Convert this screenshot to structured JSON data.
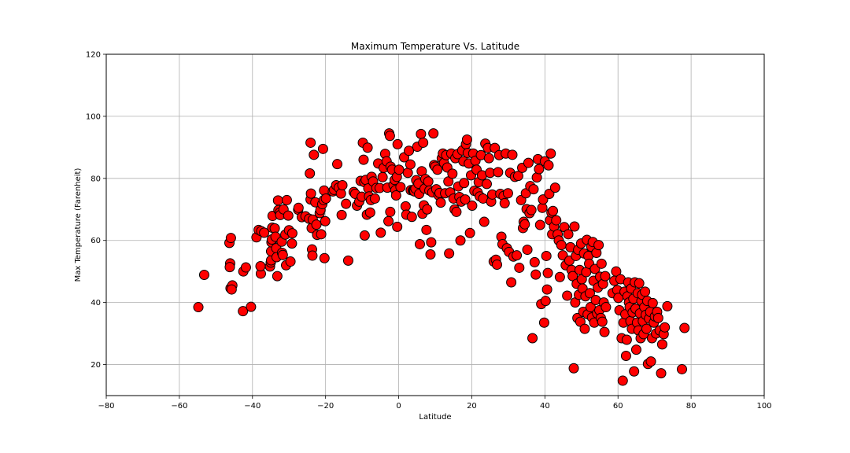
{
  "chart_data": {
    "type": "scatter",
    "title": "Maximum Temperature Vs. Latitude",
    "xlabel": "Latitude",
    "ylabel": "Max Temperature (Farenheit)",
    "xlim": [
      -80,
      100
    ],
    "ylim": [
      10,
      120
    ],
    "xticks": [
      -80,
      -60,
      -40,
      -20,
      0,
      20,
      40,
      60,
      80,
      100
    ],
    "yticks": [
      20,
      40,
      60,
      80,
      100,
      120
    ],
    "grid": true,
    "legend": "none",
    "marker_fill": "#ff0000",
    "marker_edge": "#000000",
    "points": [
      [
        -54.8,
        38.5
      ],
      [
        -53.2,
        48.9
      ],
      [
        -46.3,
        59.2
      ],
      [
        -45.9,
        60.8
      ],
      [
        -46.1,
        52.6
      ],
      [
        -46.2,
        51.4
      ],
      [
        -46.0,
        44.6
      ],
      [
        -45.5,
        45.5
      ],
      [
        -45.7,
        44.2
      ],
      [
        -42.6,
        37.2
      ],
      [
        -42.5,
        50.0
      ],
      [
        -41.8,
        51.3
      ],
      [
        -40.4,
        38.6
      ],
      [
        -38.9,
        61.0
      ],
      [
        -38.3,
        63.4
      ],
      [
        -37.7,
        49.3
      ],
      [
        -37.8,
        51.7
      ],
      [
        -37.6,
        63.0
      ],
      [
        -36.8,
        62.5
      ],
      [
        -35.2,
        51.6
      ],
      [
        -35.0,
        52.9
      ],
      [
        -34.9,
        53.6
      ],
      [
        -34.9,
        56.5
      ],
      [
        -34.8,
        59.4
      ],
      [
        -34.7,
        60.3
      ],
      [
        -34.6,
        64.1
      ],
      [
        -34.5,
        67.9
      ],
      [
        -33.9,
        63.9
      ],
      [
        -33.7,
        61.2
      ],
      [
        -33.5,
        57.5
      ],
      [
        -33.4,
        54.6
      ],
      [
        -33.2,
        48.5
      ],
      [
        -33.0,
        72.9
      ],
      [
        -32.9,
        69.8
      ],
      [
        -32.5,
        69.0
      ],
      [
        -32.4,
        68.2
      ],
      [
        -32.0,
        59.6
      ],
      [
        -31.9,
        56.0
      ],
      [
        -31.7,
        55.3
      ],
      [
        -31.5,
        70.0
      ],
      [
        -31.0,
        61.9
      ],
      [
        -30.8,
        52.0
      ],
      [
        -30.6,
        73.0
      ],
      [
        -30.2,
        68.0
      ],
      [
        -30.0,
        63.3
      ],
      [
        -29.6,
        53.2
      ],
      [
        -29.2,
        59.0
      ],
      [
        -29.1,
        62.3
      ],
      [
        -27.5,
        69.9
      ],
      [
        -27.4,
        70.5
      ],
      [
        -26.5,
        67.5
      ],
      [
        -25.5,
        67.8
      ],
      [
        -24.5,
        67.0
      ],
      [
        -24.3,
        81.6
      ],
      [
        -24.1,
        91.5
      ],
      [
        -24.1,
        73.2
      ],
      [
        -24.0,
        75.1
      ],
      [
        -23.8,
        64.0
      ],
      [
        -23.7,
        57.1
      ],
      [
        -23.6,
        55.1
      ],
      [
        -23.5,
        66.7
      ],
      [
        -23.2,
        87.6
      ],
      [
        -22.8,
        72.3
      ],
      [
        -22.5,
        65.1
      ],
      [
        -22.3,
        61.8
      ],
      [
        -21.6,
        68.8
      ],
      [
        -21.4,
        69.8
      ],
      [
        -21.2,
        62.0
      ],
      [
        -20.9,
        71.7
      ],
      [
        -20.7,
        89.5
      ],
      [
        -20.5,
        73.0
      ],
      [
        -20.4,
        76.1
      ],
      [
        -20.3,
        54.3
      ],
      [
        -20.1,
        66.2
      ],
      [
        -19.9,
        73.5
      ],
      [
        -18.0,
        75.8
      ],
      [
        -17.7,
        76.3
      ],
      [
        -17.1,
        77.8
      ],
      [
        -16.8,
        84.6
      ],
      [
        -16.4,
        77.0
      ],
      [
        -15.8,
        75.1
      ],
      [
        -15.6,
        68.2
      ],
      [
        -15.4,
        77.8
      ],
      [
        -14.4,
        71.8
      ],
      [
        -13.8,
        53.5
      ],
      [
        -12.3,
        75.6
      ],
      [
        -11.9,
        75.0
      ],
      [
        -11.4,
        71.2
      ],
      [
        -10.8,
        72.5
      ],
      [
        -10.4,
        79.2
      ],
      [
        -10.1,
        74.1
      ],
      [
        -9.8,
        91.5
      ],
      [
        -9.6,
        86.0
      ],
      [
        -9.4,
        78.8
      ],
      [
        -9.3,
        61.6
      ],
      [
        -9.0,
        79.5
      ],
      [
        -8.7,
        68.3
      ],
      [
        -8.5,
        89.9
      ],
      [
        -8.3,
        76.8
      ],
      [
        -8.1,
        74.2
      ],
      [
        -7.8,
        69.0
      ],
      [
        -7.6,
        73.0
      ],
      [
        -7.4,
        80.5
      ],
      [
        -7.0,
        79.0
      ],
      [
        -6.5,
        73.5
      ],
      [
        -6.1,
        76.9
      ],
      [
        -5.6,
        84.8
      ],
      [
        -5.2,
        76.9
      ],
      [
        -4.9,
        62.5
      ],
      [
        -4.4,
        80.4
      ],
      [
        -4.1,
        83.4
      ],
      [
        -3.7,
        87.9
      ],
      [
        -3.3,
        85.5
      ],
      [
        -3.1,
        77.0
      ],
      [
        -2.8,
        66.2
      ],
      [
        -2.6,
        94.5
      ],
      [
        -2.4,
        93.7
      ],
      [
        -2.3,
        69.2
      ],
      [
        -2.2,
        83.8
      ],
      [
        -1.8,
        82.8
      ],
      [
        -1.4,
        77.9
      ],
      [
        -1.1,
        79.5
      ],
      [
        -0.9,
        76.2
      ],
      [
        -0.7,
        74.5
      ],
      [
        -0.5,
        80.5
      ],
      [
        -0.4,
        64.4
      ],
      [
        -0.3,
        91.0
      ],
      [
        0.1,
        82.8
      ],
      [
        0.5,
        77.2
      ],
      [
        1.5,
        86.8
      ],
      [
        1.9,
        71.0
      ],
      [
        2.1,
        68.3
      ],
      [
        2.5,
        81.8
      ],
      [
        2.8,
        88.9
      ],
      [
        3.2,
        84.5
      ],
      [
        3.3,
        76.2
      ],
      [
        3.6,
        67.6
      ],
      [
        3.9,
        76.1
      ],
      [
        4.1,
        76.0
      ],
      [
        4.3,
        75.8
      ],
      [
        4.6,
        76.7
      ],
      [
        4.8,
        79.4
      ],
      [
        5.1,
        90.2
      ],
      [
        5.4,
        78.3
      ],
      [
        5.6,
        75.0
      ],
      [
        5.8,
        58.8
      ],
      [
        6.1,
        94.3
      ],
      [
        6.3,
        82.3
      ],
      [
        6.5,
        68.6
      ],
      [
        6.7,
        91.5
      ],
      [
        6.9,
        71.3
      ],
      [
        7.1,
        76.7
      ],
      [
        7.3,
        79.8
      ],
      [
        7.6,
        63.4
      ],
      [
        7.8,
        70.0
      ],
      [
        8.1,
        79.0
      ],
      [
        8.4,
        76.1
      ],
      [
        8.7,
        55.5
      ],
      [
        8.9,
        59.4
      ],
      [
        9.2,
        75.5
      ],
      [
        9.5,
        94.5
      ],
      [
        9.7,
        84.3
      ],
      [
        10.0,
        83.8
      ],
      [
        10.3,
        76.5
      ],
      [
        10.6,
        82.8
      ],
      [
        10.9,
        74.6
      ],
      [
        11.2,
        75.3
      ],
      [
        11.5,
        72.2
      ],
      [
        11.8,
        86.5
      ],
      [
        12.1,
        88.0
      ],
      [
        12.4,
        85.0
      ],
      [
        12.7,
        75.2
      ],
      [
        13.0,
        87.5
      ],
      [
        13.3,
        83.5
      ],
      [
        13.6,
        79.0
      ],
      [
        13.8,
        55.8
      ],
      [
        14.1,
        75.5
      ],
      [
        14.4,
        88.0
      ],
      [
        14.7,
        81.5
      ],
      [
        15.0,
        73.5
      ],
      [
        15.3,
        70.0
      ],
      [
        15.5,
        86.5
      ],
      [
        15.8,
        69.2
      ],
      [
        16.1,
        87.8
      ],
      [
        16.3,
        77.4
      ],
      [
        16.6,
        74.0
      ],
      [
        16.9,
        60.0
      ],
      [
        17.1,
        72.5
      ],
      [
        17.4,
        89.0
      ],
      [
        17.7,
        85.5
      ],
      [
        17.9,
        78.5
      ],
      [
        18.2,
        73.2
      ],
      [
        18.4,
        91.0
      ],
      [
        18.7,
        92.5
      ],
      [
        18.9,
        88.2
      ],
      [
        19.2,
        84.8
      ],
      [
        19.5,
        62.4
      ],
      [
        19.8,
        81.0
      ],
      [
        20.1,
        71.2
      ],
      [
        20.4,
        88.0
      ],
      [
        20.7,
        76.0
      ],
      [
        21.0,
        85.7
      ],
      [
        21.3,
        82.8
      ],
      [
        21.6,
        75.5
      ],
      [
        21.9,
        78.8
      ],
      [
        22.2,
        74.2
      ],
      [
        22.5,
        87.5
      ],
      [
        22.8,
        81.0
      ],
      [
        23.1,
        73.5
      ],
      [
        23.4,
        66.0
      ],
      [
        23.7,
        91.2
      ],
      [
        24.1,
        78.2
      ],
      [
        24.4,
        89.8
      ],
      [
        24.7,
        86.5
      ],
      [
        25.0,
        81.8
      ],
      [
        25.3,
        72.5
      ],
      [
        25.6,
        74.8
      ],
      [
        26.0,
        53.2
      ],
      [
        26.3,
        89.8
      ],
      [
        26.6,
        53.8
      ],
      [
        26.9,
        52.2
      ],
      [
        27.2,
        82.0
      ],
      [
        27.5,
        87.5
      ],
      [
        27.8,
        75.0
      ],
      [
        28.1,
        61.2
      ],
      [
        28.4,
        58.8
      ],
      [
        28.7,
        74.3
      ],
      [
        29.0,
        72.0
      ],
      [
        29.3,
        88.0
      ],
      [
        29.6,
        57.5
      ],
      [
        29.9,
        75.2
      ],
      [
        30.2,
        56.3
      ],
      [
        30.5,
        81.8
      ],
      [
        30.8,
        46.5
      ],
      [
        31.1,
        87.6
      ],
      [
        31.4,
        54.8
      ],
      [
        31.8,
        80.5
      ],
      [
        32.3,
        55.2
      ],
      [
        32.7,
        80.8
      ],
      [
        33.0,
        51.2
      ],
      [
        33.5,
        73.0
      ],
      [
        33.8,
        83.4
      ],
      [
        34.0,
        64.0
      ],
      [
        34.2,
        66.0
      ],
      [
        34.5,
        65.2
      ],
      [
        34.8,
        75.2
      ],
      [
        35.0,
        70.1
      ],
      [
        35.2,
        57.0
      ],
      [
        35.5,
        85.0
      ],
      [
        35.8,
        68.8
      ],
      [
        36.0,
        77.5
      ],
      [
        36.3,
        69.8
      ],
      [
        36.6,
        28.5
      ],
      [
        36.9,
        76.5
      ],
      [
        37.2,
        53.0
      ],
      [
        37.5,
        49.0
      ],
      [
        37.8,
        80.3
      ],
      [
        38.1,
        86.2
      ],
      [
        38.4,
        83.0
      ],
      [
        38.7,
        65.0
      ],
      [
        39.0,
        39.5
      ],
      [
        39.3,
        70.5
      ],
      [
        39.5,
        73.2
      ],
      [
        39.8,
        33.5
      ],
      [
        40.0,
        85.5
      ],
      [
        40.2,
        40.5
      ],
      [
        40.4,
        55.0
      ],
      [
        40.6,
        44.2
      ],
      [
        40.8,
        49.5
      ],
      [
        41.0,
        84.2
      ],
      [
        41.2,
        75.0
      ],
      [
        41.4,
        66.5
      ],
      [
        41.6,
        88.0
      ],
      [
        41.8,
        69.0
      ],
      [
        42.0,
        62.0
      ],
      [
        42.2,
        69.5
      ],
      [
        42.5,
        64.5
      ],
      [
        42.8,
        77.0
      ],
      [
        43.1,
        66.5
      ],
      [
        43.5,
        62.0
      ],
      [
        43.8,
        60.0
      ],
      [
        44.1,
        48.2
      ],
      [
        44.5,
        58.5
      ],
      [
        44.9,
        55.2
      ],
      [
        45.3,
        64.3
      ],
      [
        45.7,
        52.0
      ],
      [
        46.1,
        42.2
      ],
      [
        46.4,
        62.0
      ],
      [
        46.7,
        53.5
      ],
      [
        47.0,
        57.8
      ],
      [
        47.3,
        50.5
      ],
      [
        47.6,
        48.5
      ],
      [
        47.9,
        18.8
      ],
      [
        48.1,
        64.5
      ],
      [
        48.3,
        40.0
      ],
      [
        48.5,
        55.0
      ],
      [
        48.7,
        46.0
      ],
      [
        48.9,
        35.0
      ],
      [
        49.1,
        57.0
      ],
      [
        49.3,
        42.5
      ],
      [
        49.5,
        50.5
      ],
      [
        49.7,
        33.8
      ],
      [
        49.9,
        59.0
      ],
      [
        50.1,
        47.5
      ],
      [
        50.3,
        44.5
      ],
      [
        50.5,
        37.0
      ],
      [
        50.7,
        55.8
      ],
      [
        50.9,
        31.5
      ],
      [
        51.1,
        42.0
      ],
      [
        51.3,
        49.8
      ],
      [
        51.5,
        60.2
      ],
      [
        51.7,
        36.2
      ],
      [
        51.9,
        55.0
      ],
      [
        52.1,
        52.5
      ],
      [
        52.3,
        43.0
      ],
      [
        52.5,
        38.5
      ],
      [
        52.7,
        58.0
      ],
      [
        52.9,
        35.2
      ],
      [
        53.1,
        59.5
      ],
      [
        53.3,
        47.0
      ],
      [
        53.5,
        33.5
      ],
      [
        53.7,
        50.8
      ],
      [
        53.9,
        40.8
      ],
      [
        54.1,
        56.0
      ],
      [
        54.3,
        36.5
      ],
      [
        54.5,
        44.8
      ],
      [
        54.7,
        58.5
      ],
      [
        54.9,
        37.5
      ],
      [
        55.1,
        48.3
      ],
      [
        55.3,
        35.0
      ],
      [
        55.5,
        52.5
      ],
      [
        55.7,
        33.8
      ],
      [
        55.9,
        46.0
      ],
      [
        56.1,
        40.0
      ],
      [
        56.3,
        30.5
      ],
      [
        56.5,
        48.5
      ],
      [
        56.7,
        38.5
      ],
      [
        58.5,
        43.0
      ],
      [
        59.0,
        47.0
      ],
      [
        59.5,
        50.0
      ],
      [
        59.8,
        44.0
      ],
      [
        60.1,
        41.5
      ],
      [
        60.4,
        37.5
      ],
      [
        60.7,
        47.5
      ],
      [
        61.0,
        28.5
      ],
      [
        61.3,
        14.8
      ],
      [
        61.5,
        33.5
      ],
      [
        61.8,
        43.5
      ],
      [
        62.0,
        36.2
      ],
      [
        62.2,
        22.8
      ],
      [
        62.4,
        28.0
      ],
      [
        62.6,
        42.0
      ],
      [
        62.8,
        46.5
      ],
      [
        63.0,
        40.0
      ],
      [
        63.2,
        38.5
      ],
      [
        63.4,
        34.0
      ],
      [
        63.6,
        44.5
      ],
      [
        63.8,
        31.5
      ],
      [
        64.0,
        36.8
      ],
      [
        64.2,
        41.2
      ],
      [
        64.4,
        17.8
      ],
      [
        64.6,
        46.5
      ],
      [
        64.8,
        38.0
      ],
      [
        65.0,
        24.8
      ],
      [
        65.2,
        33.5
      ],
      [
        65.4,
        43.0
      ],
      [
        65.6,
        31.0
      ],
      [
        65.8,
        46.2
      ],
      [
        66.0,
        36.5
      ],
      [
        66.2,
        28.5
      ],
      [
        66.4,
        40.5
      ],
      [
        66.6,
        42.5
      ],
      [
        66.8,
        34.0
      ],
      [
        67.0,
        29.8
      ],
      [
        67.2,
        38.5
      ],
      [
        67.4,
        43.5
      ],
      [
        67.6,
        36.0
      ],
      [
        67.8,
        31.5
      ],
      [
        68.0,
        40.5
      ],
      [
        68.2,
        20.2
      ],
      [
        68.5,
        34.8
      ],
      [
        68.8,
        37.0
      ],
      [
        69.0,
        21.0
      ],
      [
        69.3,
        28.5
      ],
      [
        69.5,
        39.8
      ],
      [
        69.8,
        33.5
      ],
      [
        70.1,
        35.5
      ],
      [
        70.4,
        30.0
      ],
      [
        70.7,
        37.0
      ],
      [
        71.0,
        35.0
      ],
      [
        71.4,
        31.0
      ],
      [
        71.8,
        17.2
      ],
      [
        72.1,
        26.5
      ],
      [
        72.5,
        29.8
      ],
      [
        72.8,
        32.0
      ],
      [
        73.5,
        38.8
      ],
      [
        77.5,
        18.5
      ],
      [
        78.2,
        31.8
      ]
    ]
  }
}
